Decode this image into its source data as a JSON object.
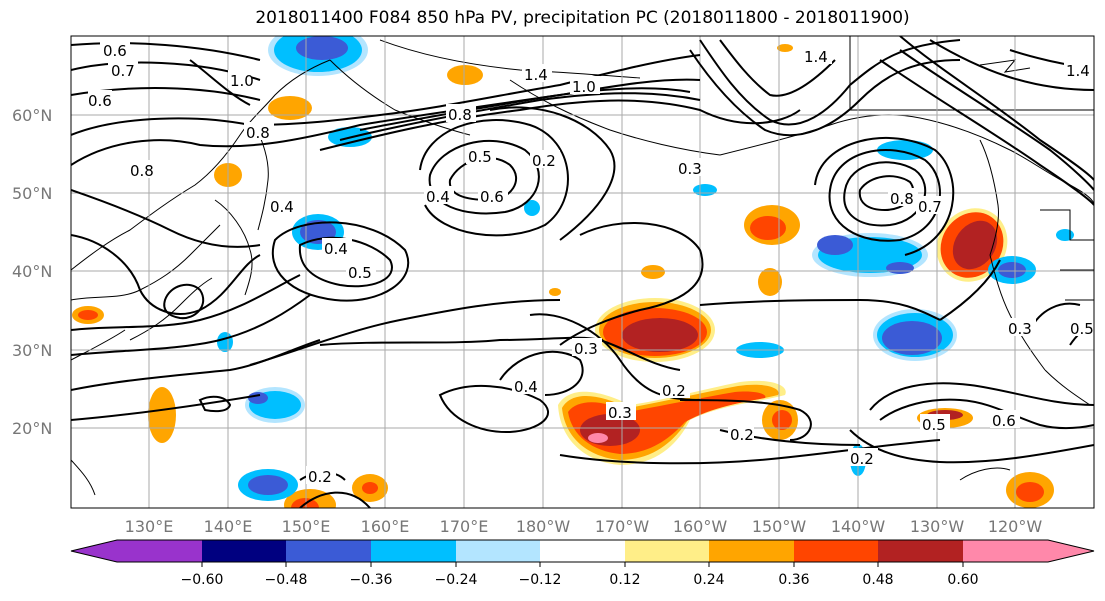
{
  "title": "2018011400 F084 850 hPa PV, precipitation PC (2018011800 - 2018011900)",
  "lat_labels": [
    "60°N",
    "50°N",
    "40°N",
    "30°N",
    "20°N"
  ],
  "lon_labels": [
    "130°E",
    "140°E",
    "150°E",
    "160°E",
    "170°E",
    "180°W",
    "170°W",
    "160°W",
    "150°W",
    "140°W",
    "130°W",
    "120°W"
  ],
  "colorbar": {
    "colors": [
      "#9933cc",
      "#000080",
      "#3b5bd6",
      "#00bfff",
      "#b3e5ff",
      "#ffffff",
      "#ffee88",
      "#ffa500",
      "#ff4500",
      "#b22222",
      "#ff88aa"
    ],
    "ticks": [
      "−0.60",
      "−0.48",
      "−0.36",
      "−0.24",
      "−0.12",
      "0.12",
      "0.24",
      "0.36",
      "0.48",
      "0.60"
    ]
  },
  "contour_labels": [
    "0.6",
    "0.7",
    "0.6",
    "1.0",
    "0.8",
    "0.8",
    "0.8",
    "1.4",
    "1.0",
    "1.4",
    "1.4",
    "0.5",
    "0.6",
    "0.4",
    "0.2",
    "0.3",
    "0.4",
    "0.4",
    "0.5",
    "0.3",
    "0.4",
    "0.3",
    "0.2",
    "0.2",
    "0.5",
    "0.6",
    "0.2",
    "0.8",
    "0.7",
    "0.3",
    "0.5",
    "0.2"
  ]
}
